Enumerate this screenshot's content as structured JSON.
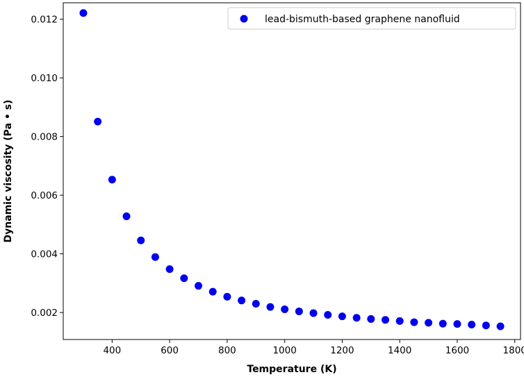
{
  "chart_data": {
    "type": "scatter",
    "xlabel": "Temperature (K)",
    "ylabel": "Dynamic viscosity (Pa • s)",
    "xlim": [
      230,
      1820
    ],
    "ylim": [
      0.00108,
      0.01256
    ],
    "xticks": [
      400,
      600,
      800,
      1000,
      1200,
      1400,
      1600,
      1800
    ],
    "xtick_labels": [
      "400",
      "600",
      "800",
      "1000",
      "1200",
      "1400",
      "1600",
      "1800"
    ],
    "yticks": [
      0.002,
      0.004,
      0.006,
      0.008,
      0.01,
      0.012
    ],
    "ytick_labels": [
      "0.002",
      "0.004",
      "0.006",
      "0.008",
      "0.010",
      "0.012"
    ],
    "grid": false,
    "legend_position": "top-right",
    "series": [
      {
        "name": "lead-bismuth-based graphene nanofluid",
        "color": "#0000ee",
        "marker": "circle",
        "x": [
          300,
          350,
          400,
          450,
          500,
          550,
          600,
          650,
          700,
          750,
          800,
          850,
          900,
          950,
          1000,
          1050,
          1100,
          1150,
          1200,
          1250,
          1300,
          1350,
          1400,
          1450,
          1500,
          1550,
          1600,
          1650,
          1700,
          1750
        ],
        "y": [
          0.01221,
          0.00851,
          0.00653,
          0.00528,
          0.00446,
          0.00389,
          0.00348,
          0.00317,
          0.00291,
          0.00271,
          0.00254,
          0.00241,
          0.0023,
          0.00219,
          0.00211,
          0.00204,
          0.00198,
          0.00192,
          0.00187,
          0.00182,
          0.00178,
          0.00175,
          0.00171,
          0.00167,
          0.00165,
          0.00162,
          0.00161,
          0.00159,
          0.00156,
          0.00153
        ]
      }
    ]
  }
}
